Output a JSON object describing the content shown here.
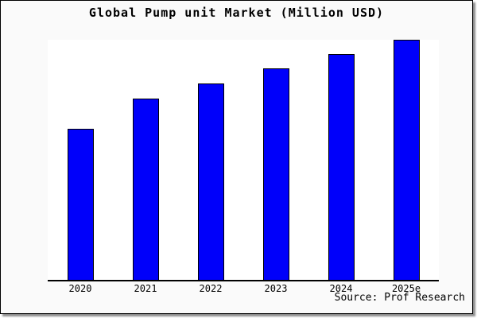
{
  "chart_data": {
    "type": "bar",
    "title": "Global Pump unit Market (Million USD)",
    "categories": [
      "2020",
      "2021",
      "2022",
      "2023",
      "2024",
      "2025e"
    ],
    "values": [
      62.9,
      75.5,
      81.8,
      88.1,
      94.0,
      100
    ],
    "values_unit": "relative height, percent of tallest bar (no y-axis scale shown in image)",
    "xlabel": "",
    "ylabel": "",
    "ylim": [
      0,
      100
    ],
    "grid": false,
    "legend": null,
    "bar_color": "#0000fa",
    "bar_border_color": "#000000",
    "plot_background": "#ffffff",
    "frame_background": "#fafafa",
    "source": "Source: Prof Research"
  }
}
